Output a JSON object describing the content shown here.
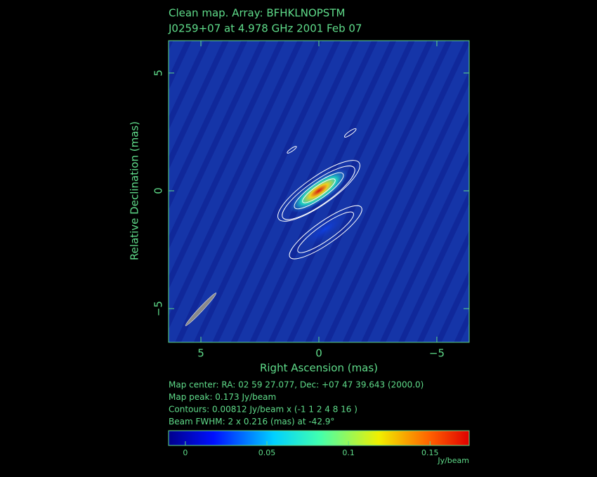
{
  "chart_data": {
    "type": "image",
    "title": "Clean map.  Array: BFHKLNOPSTM",
    "subtitle": "J0259+07 at 4.978 GHz 2001 Feb 07",
    "xlabel": "Right Ascension  (mas)",
    "ylabel": "Relative Declination  (mas)",
    "xlim": [
      6.37,
      -6.37
    ],
    "ylim": [
      -6.43,
      6.37
    ],
    "xticks": [
      5,
      0,
      {
        "value": -5,
        "label": "−5"
      }
    ],
    "yticks": [
      5,
      0,
      {
        "value": -5,
        "label": "−5"
      }
    ],
    "notes": [
      "Map center:  RA: 02 59 27.077,  Dec: +07 47 39.643 (2000.0)",
      "Map peak: 0.173 Jy/beam",
      "Contours: 0.00812 Jy/beam x (-1 1 2 4 8 16 )",
      "Beam FWHM: 2 x 0.216 (mas) at -42.9°"
    ],
    "colorbar": {
      "lim": [
        -0.0103,
        0.174
      ],
      "ticks": [
        0,
        0.05,
        0.1,
        0.15
      ],
      "label": "Jy/beam"
    }
  }
}
